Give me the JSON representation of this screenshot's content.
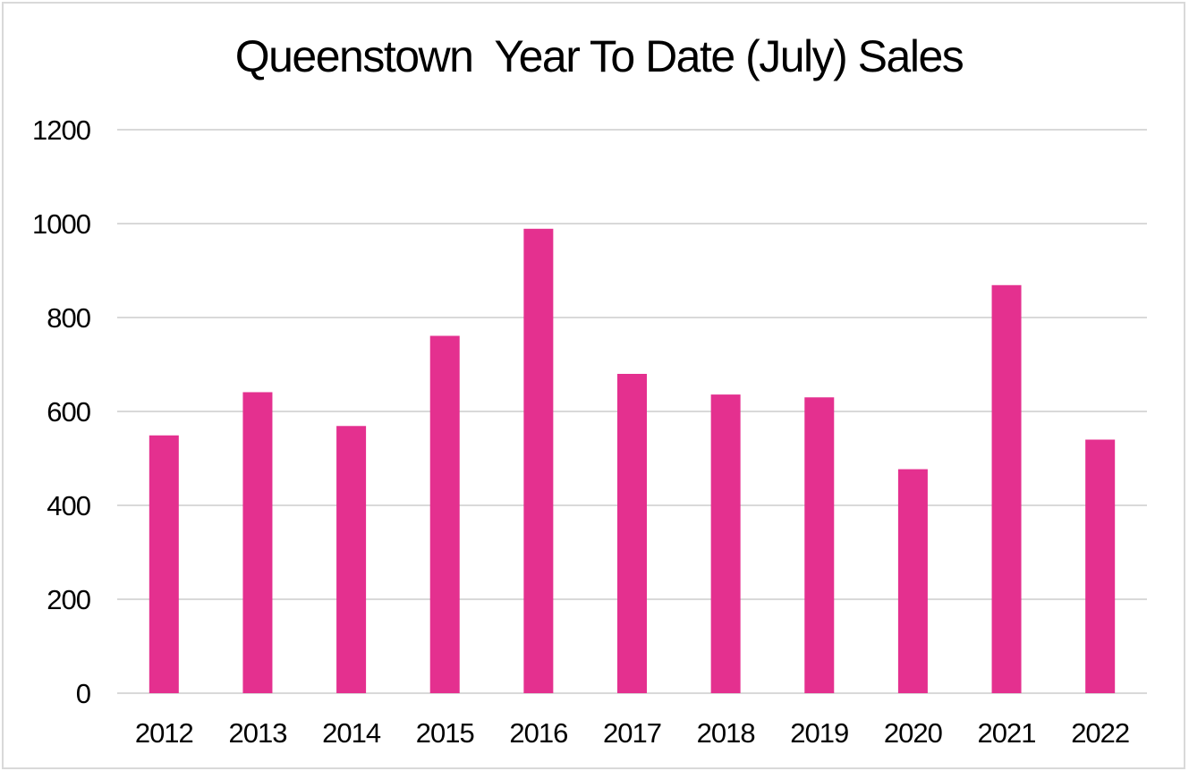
{
  "chart_data": {
    "type": "bar",
    "title": "Queenstown  Year To Date (July) Sales",
    "categories": [
      "2012",
      "2013",
      "2014",
      "2015",
      "2016",
      "2017",
      "2018",
      "2019",
      "2020",
      "2021",
      "2022"
    ],
    "series": [
      {
        "name": "Sales",
        "values": [
          549,
          641,
          569,
          761,
          989,
          680,
          636,
          630,
          477,
          869,
          540
        ]
      }
    ],
    "xlabel": "",
    "ylabel": "",
    "ylim": [
      0,
      1200
    ],
    "yticks": [
      0,
      200,
      400,
      600,
      800,
      1000,
      1200
    ],
    "grid": true,
    "legend": "none",
    "bar_color": "#e4308f",
    "grid_color": "#d9d9d9"
  }
}
